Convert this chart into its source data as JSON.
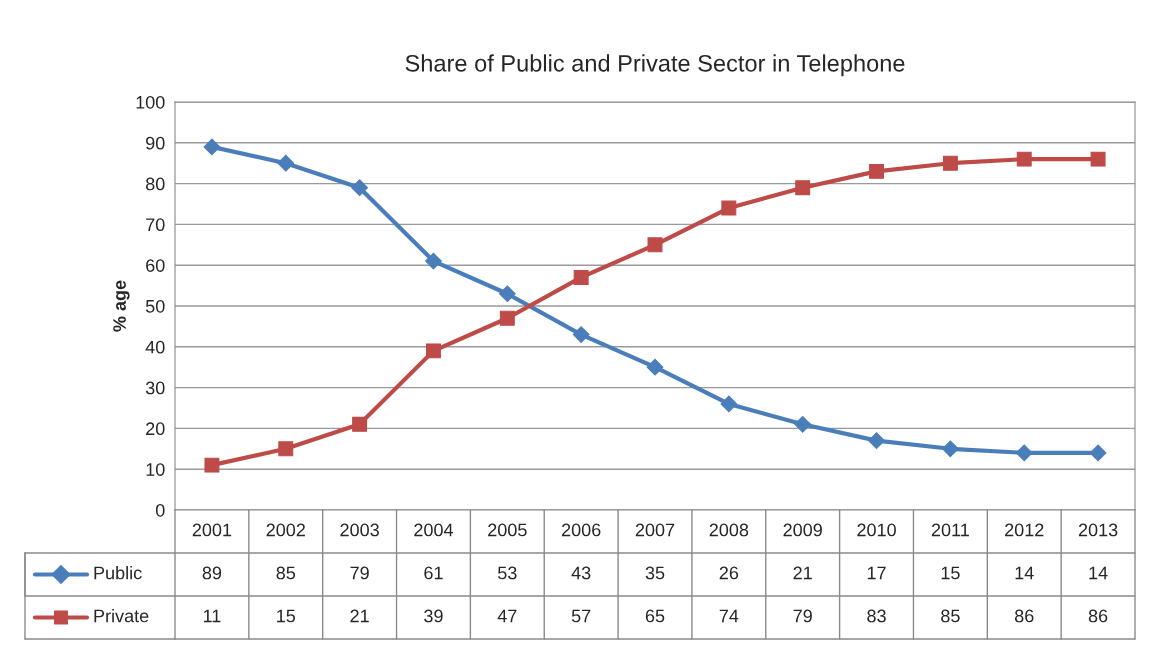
{
  "chart_data": {
    "type": "line",
    "title": "Share of Public and Private Sector in Telephone",
    "ylabel": "% age",
    "categories": [
      "2001",
      "2002",
      "2003",
      "2004",
      "2005",
      "2006",
      "2007",
      "2008",
      "2009",
      "2010",
      "2011",
      "2012",
      "2013"
    ],
    "series": [
      {
        "name": "Public",
        "color": "#4a7ebb",
        "marker": "diamond",
        "values": [
          89,
          85,
          79,
          61,
          53,
          43,
          35,
          26,
          21,
          17,
          15,
          14,
          14
        ]
      },
      {
        "name": "Private",
        "color": "#be4b48",
        "marker": "square",
        "values": [
          11,
          15,
          21,
          39,
          47,
          57,
          65,
          74,
          79,
          83,
          85,
          86,
          86
        ]
      }
    ],
    "ylim": [
      0,
      100
    ],
    "yticks": [
      0,
      10,
      20,
      30,
      40,
      50,
      60,
      70,
      80,
      90,
      100
    ],
    "grid": "y",
    "legend": "bottom",
    "data_labels": true,
    "line_style": "solid"
  }
}
